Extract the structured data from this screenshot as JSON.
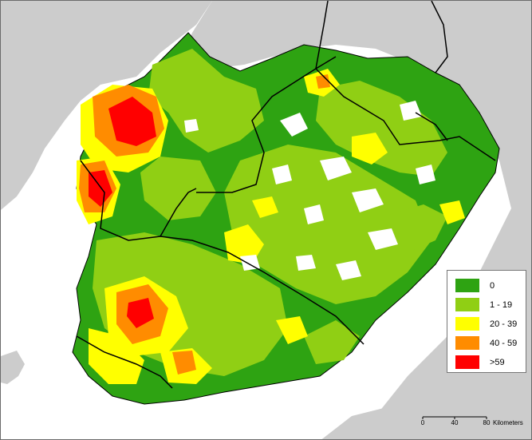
{
  "map": {
    "colors": {
      "sea": "#ffffff",
      "land_outside": "#cccccc",
      "class_0": "#2ea312",
      "class_1_19": "#90cf14",
      "class_20_39": "#ffff00",
      "class_40_59": "#ff8c00",
      "class_gt59": "#ff0000",
      "lakes": "#ffffff",
      "boundaries": "#000000"
    },
    "legend": {
      "items": [
        {
          "label": "0",
          "color": "#2ea312"
        },
        {
          "label": "1 - 19",
          "color": "#90cf14"
        },
        {
          "label": "20 - 39",
          "color": "#ffff00"
        },
        {
          "label": "40 - 59",
          "color": "#ff8c00"
        },
        {
          "label": ">59",
          "color": "#ff0000"
        }
      ]
    },
    "scale": {
      "ticks": [
        "0",
        "40",
        "80"
      ],
      "unit": "Kilometers"
    }
  }
}
